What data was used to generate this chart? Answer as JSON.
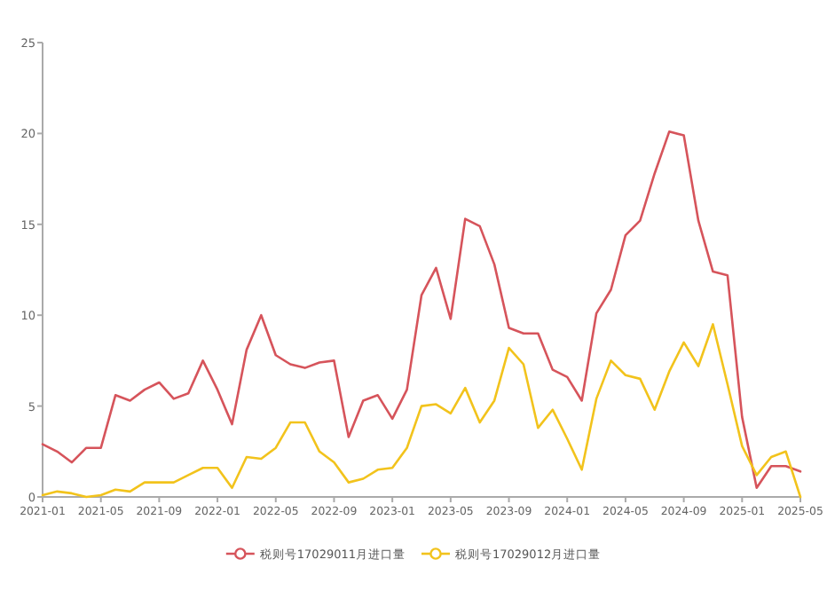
{
  "chart_data": {
    "type": "line",
    "x": [
      "2021-01",
      "2021-02",
      "2021-03",
      "2021-04",
      "2021-05",
      "2021-06",
      "2021-07",
      "2021-08",
      "2021-09",
      "2021-10",
      "2021-11",
      "2021-12",
      "2022-01",
      "2022-02",
      "2022-03",
      "2022-04",
      "2022-05",
      "2022-06",
      "2022-07",
      "2022-08",
      "2022-09",
      "2022-10",
      "2022-11",
      "2022-12",
      "2023-01",
      "2023-02",
      "2023-03",
      "2023-04",
      "2023-05",
      "2023-06",
      "2023-07",
      "2023-08",
      "2023-09",
      "2023-10",
      "2023-11",
      "2023-12",
      "2024-01",
      "2024-02",
      "2024-03",
      "2024-04",
      "2024-05",
      "2024-06",
      "2024-07",
      "2024-08",
      "2024-09",
      "2024-10",
      "2024-11",
      "2024-12",
      "2025-01",
      "2025-02",
      "2025-03",
      "2025-04",
      "2025-05"
    ],
    "series": [
      {
        "name": "税则号17029011月进口量",
        "color": "#d6545b",
        "values": [
          2.9,
          2.5,
          1.9,
          2.7,
          2.7,
          5.6,
          5.3,
          5.9,
          6.3,
          5.4,
          5.7,
          7.5,
          5.9,
          4.0,
          8.1,
          10.0,
          7.8,
          7.3,
          7.1,
          7.4,
          7.5,
          3.3,
          5.3,
          5.6,
          4.3,
          5.9,
          11.1,
          12.6,
          9.8,
          15.3,
          14.9,
          12.8,
          9.3,
          9.0,
          9.0,
          7.0,
          6.6,
          5.3,
          10.1,
          11.4,
          14.4,
          15.2,
          17.8,
          20.1,
          19.9,
          15.2,
          12.4,
          12.2,
          4.4,
          0.5,
          1.7,
          1.7,
          1.4
        ]
      },
      {
        "name": "税则号17029012月进口量",
        "color": "#f2c31c",
        "values": [
          0.1,
          0.3,
          0.2,
          0.0,
          0.1,
          0.4,
          0.3,
          0.8,
          0.8,
          0.8,
          1.2,
          1.6,
          1.6,
          0.5,
          2.2,
          2.1,
          2.7,
          4.1,
          4.1,
          2.5,
          1.9,
          0.8,
          1.0,
          1.5,
          1.6,
          2.7,
          5.0,
          5.1,
          4.6,
          6.0,
          4.1,
          5.3,
          8.2,
          7.3,
          3.8,
          4.8,
          3.2,
          1.5,
          5.4,
          7.5,
          6.7,
          6.5,
          4.8,
          6.9,
          8.5,
          7.2,
          9.5,
          6.2,
          2.8,
          1.2,
          2.2,
          2.5,
          0.0
        ]
      }
    ],
    "xlim": [
      "2021-01",
      "2025-05"
    ],
    "xticks": [
      "2021-01",
      "2021-05",
      "2021-09",
      "2022-01",
      "2022-05",
      "2022-09",
      "2023-01",
      "2023-05",
      "2023-09",
      "2024-01",
      "2024-05",
      "2024-09",
      "2025-01",
      "2025-05"
    ],
    "ylim": [
      0,
      25
    ],
    "yticks": [
      0,
      5,
      10,
      15,
      20,
      25
    ],
    "legend": "bottom"
  }
}
